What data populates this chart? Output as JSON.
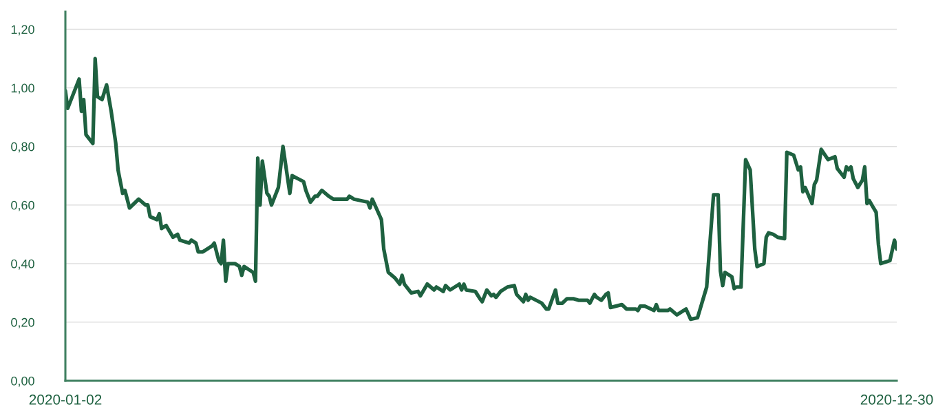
{
  "chart_data": {
    "type": "line",
    "x": [
      "2020-01-02",
      "2020-01-03",
      "2020-01-08",
      "2020-01-09",
      "2020-01-10",
      "2020-01-11",
      "2020-01-14",
      "2020-01-15",
      "2020-01-16",
      "2020-01-18",
      "2020-01-20",
      "2020-01-22",
      "2020-01-24",
      "2020-01-25",
      "2020-01-27",
      "2020-01-28",
      "2020-01-30",
      "2020-02-03",
      "2020-02-06",
      "2020-02-07",
      "2020-02-08",
      "2020-02-11",
      "2020-02-12",
      "2020-02-13",
      "2020-02-15",
      "2020-02-18",
      "2020-02-20",
      "2020-02-21",
      "2020-02-25",
      "2020-02-26",
      "2020-02-28",
      "2020-02-29",
      "2020-03-02",
      "2020-03-06",
      "2020-03-07",
      "2020-03-08",
      "2020-03-09",
      "2020-03-10",
      "2020-03-11",
      "2020-03-12",
      "2020-03-13",
      "2020-03-16",
      "2020-03-18",
      "2020-03-19",
      "2020-03-20",
      "2020-03-24",
      "2020-03-25",
      "2020-03-26",
      "2020-03-27",
      "2020-03-28",
      "2020-03-30",
      "2020-03-31",
      "2020-04-01",
      "2020-04-04",
      "2020-04-06",
      "2020-04-09",
      "2020-04-10",
      "2020-04-15",
      "2020-04-16",
      "2020-04-18",
      "2020-04-20",
      "2020-04-21",
      "2020-04-23",
      "2020-04-26",
      "2020-04-28",
      "2020-04-30",
      "2020-05-04",
      "2020-05-05",
      "2020-05-07",
      "2020-05-13",
      "2020-05-14",
      "2020-05-15",
      "2020-05-19",
      "2020-05-20",
      "2020-05-21",
      "2020-05-22",
      "2020-05-25",
      "2020-05-27",
      "2020-05-28",
      "2020-05-29",
      "2020-06-01",
      "2020-06-04",
      "2020-06-05",
      "2020-06-08",
      "2020-06-11",
      "2020-06-12",
      "2020-06-15",
      "2020-06-16",
      "2020-06-18",
      "2020-06-22",
      "2020-06-23",
      "2020-06-24",
      "2020-06-25",
      "2020-06-29",
      "2020-07-01",
      "2020-07-02",
      "2020-07-04",
      "2020-07-06",
      "2020-07-07",
      "2020-07-08",
      "2020-07-10",
      "2020-07-13",
      "2020-07-16",
      "2020-07-17",
      "2020-07-20",
      "2020-07-21",
      "2020-07-22",
      "2020-07-23",
      "2020-07-28",
      "2020-07-30",
      "2020-07-31",
      "2020-08-03",
      "2020-08-04",
      "2020-08-06",
      "2020-08-08",
      "2020-08-11",
      "2020-08-13",
      "2020-08-17",
      "2020-08-18",
      "2020-08-20",
      "2020-08-21",
      "2020-08-23",
      "2020-08-25",
      "2020-08-26",
      "2020-08-27",
      "2020-09-01",
      "2020-09-03",
      "2020-09-07",
      "2020-09-08",
      "2020-09-09",
      "2020-09-11",
      "2020-09-15",
      "2020-09-16",
      "2020-09-17",
      "2020-09-21",
      "2020-09-22",
      "2020-09-25",
      "2020-09-29",
      "2020-10-01",
      "2020-10-04",
      "2020-10-08",
      "2020-10-11",
      "2020-10-13",
      "2020-10-14",
      "2020-10-15",
      "2020-10-16",
      "2020-10-19",
      "2020-10-20",
      "2020-10-21",
      "2020-10-23",
      "2020-10-25",
      "2020-10-27",
      "2020-10-29",
      "2020-10-30",
      "2020-11-02",
      "2020-11-03",
      "2020-11-04",
      "2020-11-06",
      "2020-11-08",
      "2020-11-11",
      "2020-11-12",
      "2020-11-15",
      "2020-11-17",
      "2020-11-18",
      "2020-11-19",
      "2020-11-20",
      "2020-11-23",
      "2020-11-24",
      "2020-11-25",
      "2020-11-27",
      "2020-11-30",
      "2020-12-03",
      "2020-12-04",
      "2020-12-07",
      "2020-12-08",
      "2020-12-09",
      "2020-12-10",
      "2020-12-11",
      "2020-12-13",
      "2020-12-15",
      "2020-12-16",
      "2020-12-17",
      "2020-12-18",
      "2020-12-21",
      "2020-12-22",
      "2020-12-23",
      "2020-12-27",
      "2020-12-29",
      "2020-12-30"
    ],
    "series": [
      {
        "color": "#1e6140",
        "values": [
          0.99,
          0.93,
          1.03,
          0.92,
          0.96,
          0.84,
          0.81,
          1.1,
          0.97,
          0.96,
          1.01,
          0.92,
          0.81,
          0.72,
          0.64,
          0.65,
          0.59,
          0.62,
          0.6,
          0.6,
          0.56,
          0.55,
          0.57,
          0.52,
          0.53,
          0.49,
          0.5,
          0.48,
          0.47,
          0.48,
          0.47,
          0.44,
          0.44,
          0.46,
          0.47,
          0.44,
          0.41,
          0.4,
          0.48,
          0.34,
          0.4,
          0.4,
          0.39,
          0.36,
          0.39,
          0.37,
          0.34,
          0.76,
          0.6,
          0.75,
          0.64,
          0.63,
          0.6,
          0.66,
          0.8,
          0.64,
          0.7,
          0.68,
          0.65,
          0.61,
          0.63,
          0.63,
          0.65,
          0.63,
          0.62,
          0.62,
          0.62,
          0.63,
          0.62,
          0.61,
          0.59,
          0.62,
          0.55,
          0.45,
          0.41,
          0.37,
          0.35,
          0.33,
          0.36,
          0.33,
          0.3,
          0.305,
          0.29,
          0.33,
          0.31,
          0.32,
          0.305,
          0.325,
          0.31,
          0.33,
          0.31,
          0.33,
          0.31,
          0.305,
          0.28,
          0.27,
          0.31,
          0.29,
          0.295,
          0.285,
          0.305,
          0.32,
          0.325,
          0.295,
          0.27,
          0.295,
          0.275,
          0.285,
          0.265,
          0.245,
          0.245,
          0.31,
          0.265,
          0.265,
          0.28,
          0.28,
          0.275,
          0.275,
          0.265,
          0.295,
          0.285,
          0.275,
          0.295,
          0.3,
          0.25,
          0.26,
          0.245,
          0.245,
          0.24,
          0.255,
          0.255,
          0.24,
          0.26,
          0.24,
          0.24,
          0.245,
          0.225,
          0.245,
          0.21,
          0.215,
          0.32,
          0.635,
          0.635,
          0.375,
          0.325,
          0.37,
          0.355,
          0.315,
          0.32,
          0.32,
          0.755,
          0.72,
          0.45,
          0.39,
          0.4,
          0.49,
          0.505,
          0.5,
          0.49,
          0.485,
          0.78,
          0.77,
          0.72,
          0.73,
          0.645,
          0.66,
          0.605,
          0.67,
          0.685,
          0.79,
          0.755,
          0.765,
          0.725,
          0.695,
          0.73,
          0.72,
          0.73,
          0.69,
          0.66,
          0.685,
          0.73,
          0.605,
          0.615,
          0.575,
          0.465,
          0.4,
          0.41,
          0.48,
          0.45
        ]
      }
    ],
    "xlim": [
      "2020-01-02",
      "2020-12-30"
    ],
    "xticks": [
      "2020-01-02",
      "2020-12-30"
    ],
    "ylim": [
      0,
      1.26
    ],
    "yticks": [
      {
        "value": 0,
        "label": "0,00"
      },
      {
        "value": 0.2,
        "label": "0,20"
      },
      {
        "value": 0.4,
        "label": "0,40"
      },
      {
        "value": 0.6,
        "label": "0,60"
      },
      {
        "value": 0.8,
        "label": "0,80"
      },
      {
        "value": 1.0,
        "label": "1,00"
      },
      {
        "value": 1.2,
        "label": "1,20"
      }
    ],
    "grid": "y",
    "legend": false,
    "marker": "none",
    "line_style": "solid"
  }
}
